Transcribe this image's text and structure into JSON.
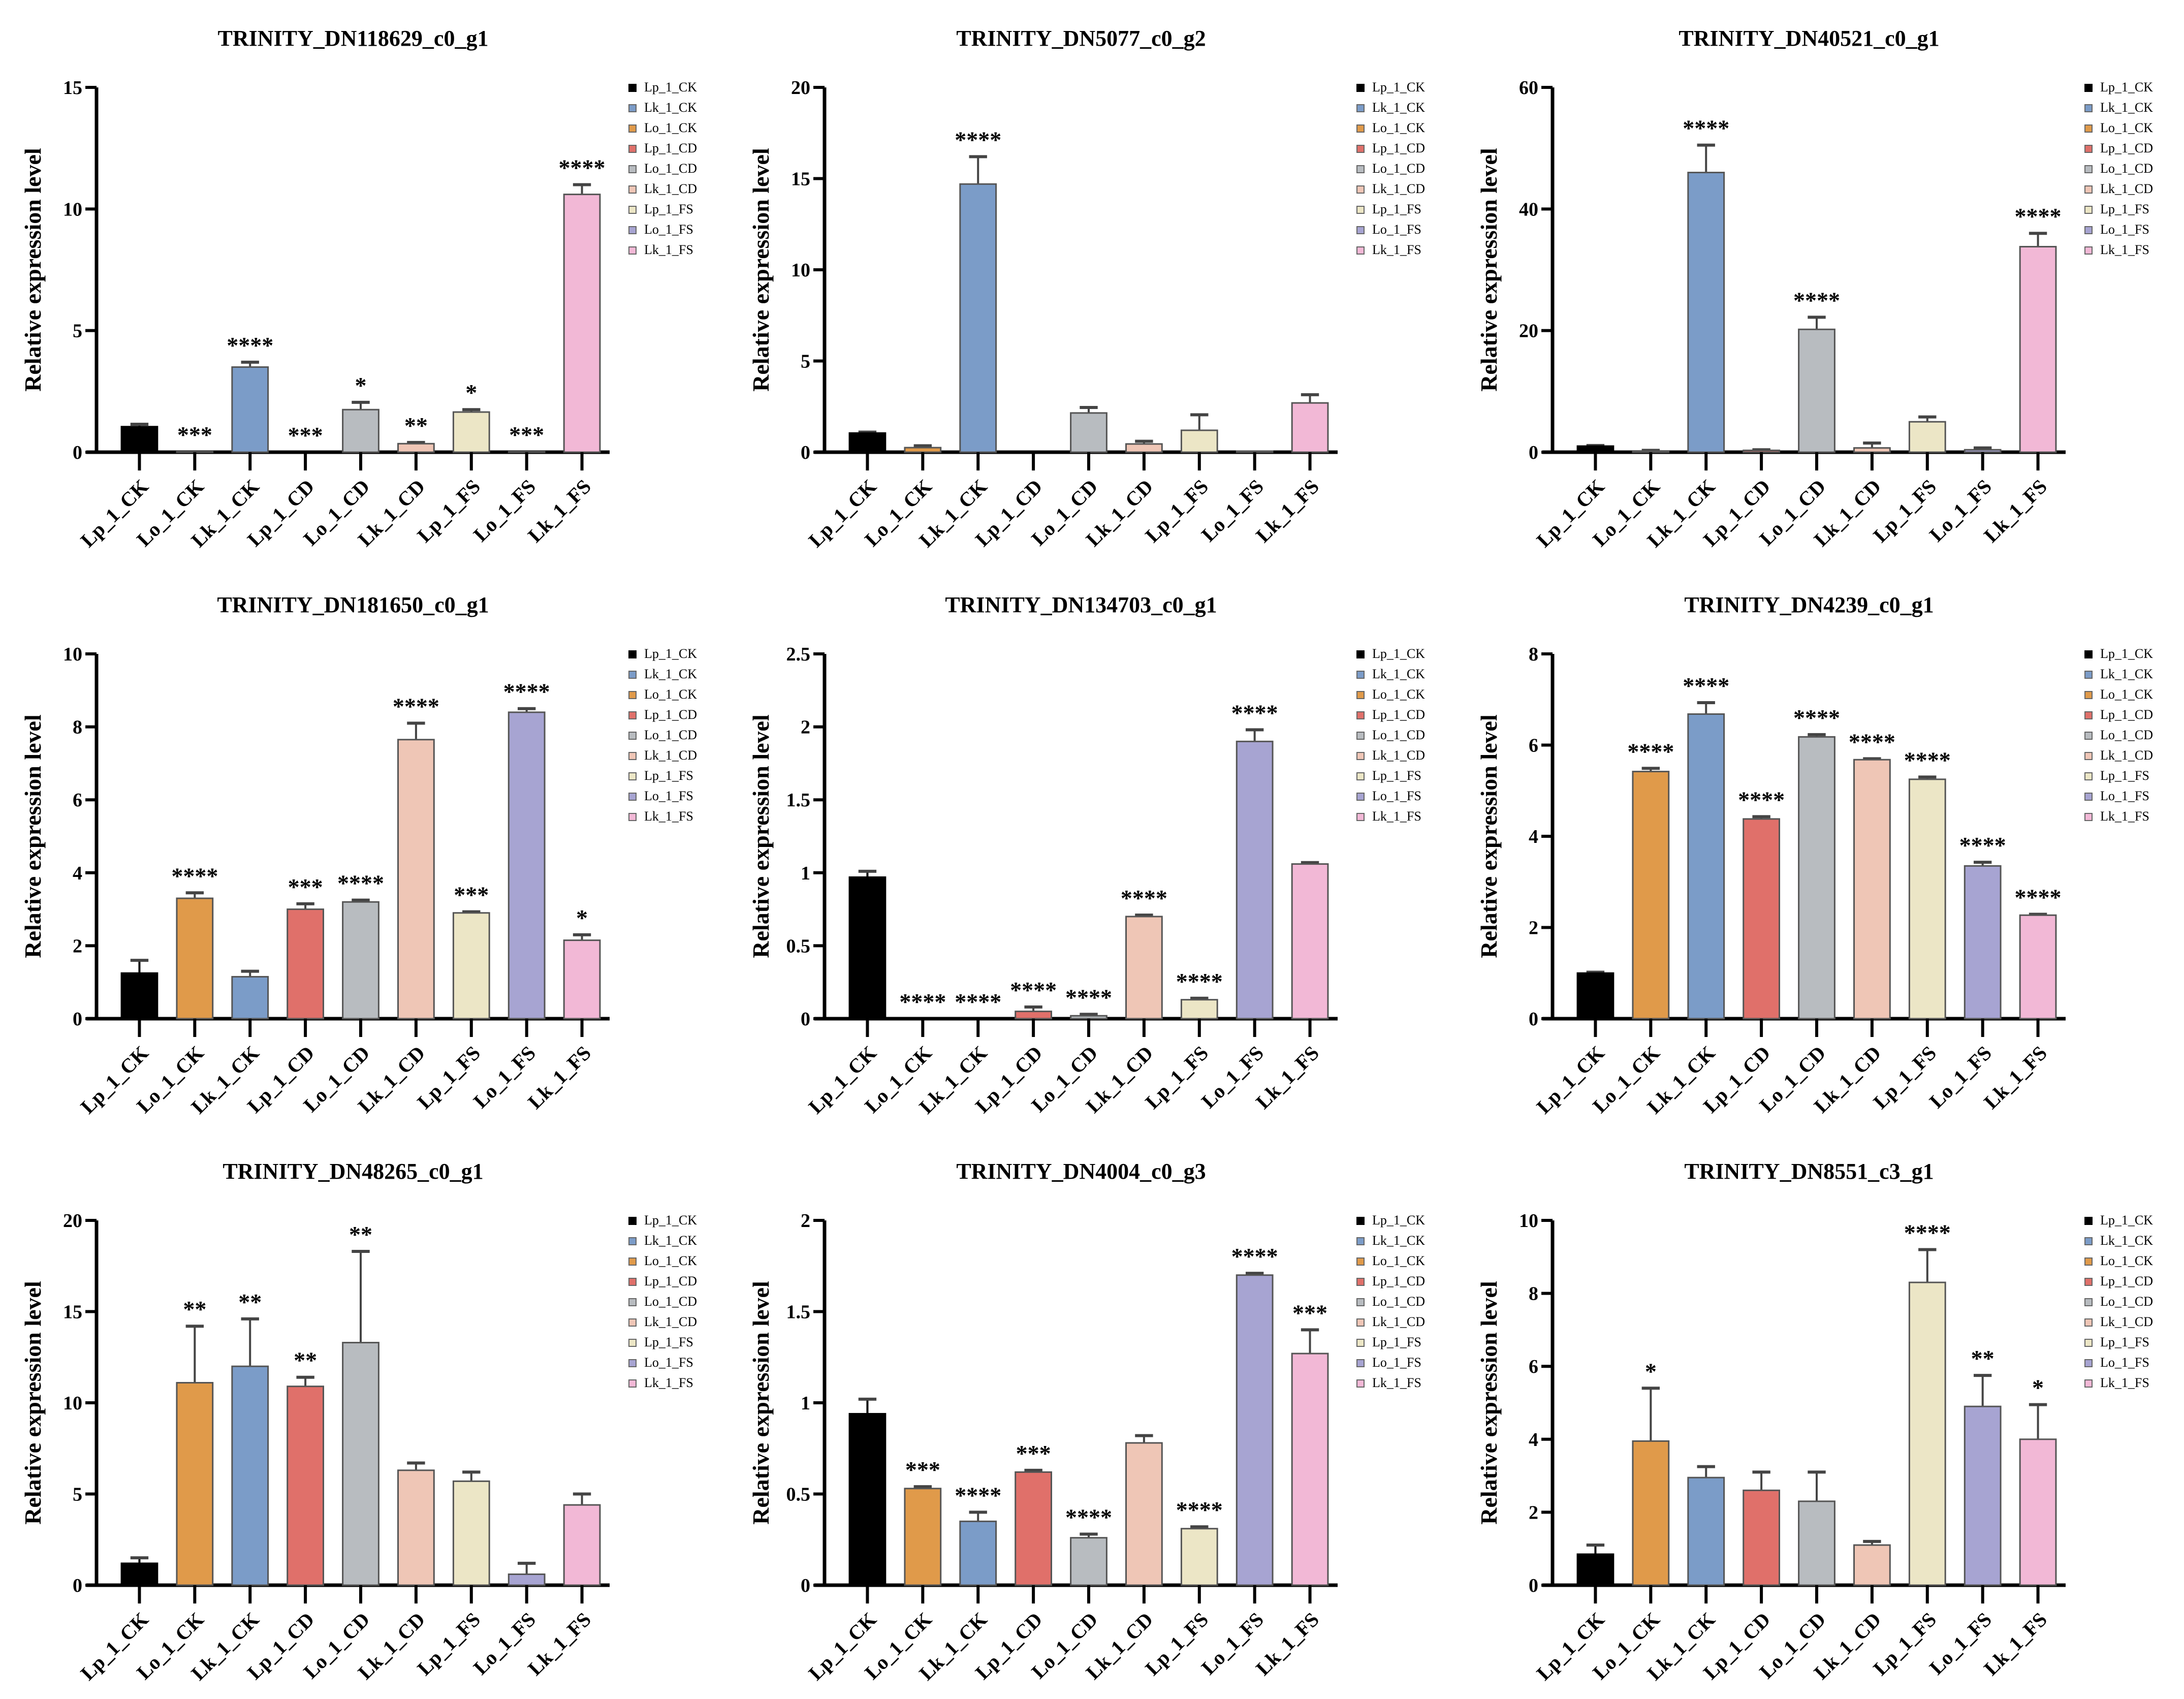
{
  "legend": [
    "Lp_1_CK",
    "Lk_1_CK",
    "Lo_1_CK",
    "Lp_1_CD",
    "Lo_1_CD",
    "Lk_1_CD",
    "Lp_1_FS",
    "Lo_1_FS",
    "Lk_1_FS"
  ],
  "legend_colors": [
    "#000000",
    "#7b9cc8",
    "#e09a4a",
    "#e0706a",
    "#b8bcc0",
    "#efc6b6",
    "#ece6c6",
    "#a7a4d2",
    "#f2b8d6"
  ],
  "chart_data": [
    {
      "type": "bar",
      "title": "TRINITY_DN118629_c0_g1",
      "ylabel": "Relative expression level",
      "ylim": [
        0,
        15
      ],
      "yticks": [
        0,
        5,
        10,
        15
      ],
      "categories": [
        "Lp_1_CK",
        "Lo_1_CK",
        "Lk_1_CK",
        "Lp_1_CD",
        "Lo_1_CD",
        "Lk_1_CD",
        "Lp_1_FS",
        "Lo_1_FS",
        "Lk_1_FS"
      ],
      "values": [
        1.05,
        0.02,
        3.5,
        0,
        1.75,
        0.35,
        1.65,
        0.02,
        10.6
      ],
      "errors": [
        0.1,
        0,
        0.2,
        0,
        0.3,
        0.05,
        0.1,
        0,
        0.4
      ],
      "significance": [
        "",
        "***",
        "****",
        "***",
        "*",
        "**",
        "*",
        "***",
        "****"
      ]
    },
    {
      "type": "bar",
      "title": "TRINITY_DN5077_c0_g2",
      "ylabel": "Relative expression level",
      "ylim": [
        0,
        20
      ],
      "yticks": [
        0,
        5,
        10,
        15,
        20
      ],
      "categories": [
        "Lp_1_CK",
        "Lo_1_CK",
        "Lk_1_CK",
        "Lp_1_CD",
        "Lo_1_CD",
        "Lk_1_CD",
        "Lp_1_FS",
        "Lo_1_FS",
        "Lk_1_FS"
      ],
      "values": [
        1.05,
        0.25,
        14.7,
        0,
        2.15,
        0.45,
        1.2,
        0.05,
        2.7
      ],
      "errors": [
        0.05,
        0.1,
        1.5,
        0,
        0.3,
        0.15,
        0.85,
        0,
        0.45
      ],
      "significance": [
        "",
        "",
        "****",
        "",
        "",
        "",
        "",
        "",
        ""
      ]
    },
    {
      "type": "bar",
      "title": "TRINITY_DN40521_c0_g1",
      "ylabel": "Relative expression level",
      "ylim": [
        0,
        60
      ],
      "yticks": [
        0,
        20,
        40,
        60
      ],
      "categories": [
        "Lp_1_CK",
        "Lo_1_CK",
        "Lk_1_CK",
        "Lp_1_CD",
        "Lo_1_CD",
        "Lk_1_CD",
        "Lp_1_FS",
        "Lo_1_FS",
        "Lk_1_FS"
      ],
      "values": [
        1,
        0.2,
        46,
        0.3,
        20.2,
        0.7,
        5,
        0.4,
        33.8
      ],
      "errors": [
        0.1,
        0.1,
        4.5,
        0.1,
        2,
        0.8,
        0.8,
        0.3,
        2.2
      ],
      "significance": [
        "",
        "",
        "****",
        "",
        "****",
        "",
        "",
        "",
        "****"
      ]
    },
    {
      "type": "bar",
      "title": "TRINITY_DN181650_c0_g1",
      "ylabel": "Relative expression level",
      "ylim": [
        0,
        10
      ],
      "yticks": [
        0,
        2,
        4,
        6,
        8,
        10
      ],
      "categories": [
        "Lp_1_CK",
        "Lo_1_CK",
        "Lk_1_CK",
        "Lp_1_CD",
        "Lo_1_CD",
        "Lk_1_CD",
        "Lp_1_FS",
        "Lo_1_FS",
        "Lk_1_FS"
      ],
      "values": [
        1.25,
        3.3,
        1.15,
        3.0,
        3.2,
        7.65,
        2.9,
        8.4,
        2.15
      ],
      "errors": [
        0.35,
        0.15,
        0.15,
        0.15,
        0.05,
        0.45,
        0.03,
        0.1,
        0.15
      ],
      "significance": [
        "",
        "****",
        "",
        "***",
        "****",
        "****",
        "***",
        "****",
        "*"
      ]
    },
    {
      "type": "bar",
      "title": "TRINITY_DN134703_c0_g1",
      "ylabel": "Relative expression level",
      "ylim": [
        0,
        2.5
      ],
      "yticks": [
        0,
        0.5,
        1.0,
        1.5,
        2.0,
        2.5
      ],
      "categories": [
        "Lp_1_CK",
        "Lo_1_CK",
        "Lk_1_CK",
        "Lp_1_CD",
        "Lo_1_CD",
        "Lk_1_CD",
        "Lp_1_FS",
        "Lo_1_FS",
        "Lk_1_FS"
      ],
      "values": [
        0.97,
        0,
        0,
        0.05,
        0.02,
        0.7,
        0.13,
        1.9,
        1.06
      ],
      "errors": [
        0.04,
        0,
        0,
        0.03,
        0.01,
        0.01,
        0.01,
        0.08,
        0.01
      ],
      "significance": [
        "",
        "****",
        "****",
        "****",
        "****",
        "****",
        "****",
        "****",
        ""
      ]
    },
    {
      "type": "bar",
      "title": "TRINITY_DN4239_c0_g1",
      "ylabel": "Relative expression level",
      "ylim": [
        0,
        8
      ],
      "yticks": [
        0,
        2,
        4,
        6,
        8
      ],
      "categories": [
        "Lp_1_CK",
        "Lo_1_CK",
        "Lk_1_CK",
        "Lp_1_CD",
        "Lo_1_CD",
        "Lk_1_CD",
        "Lp_1_FS",
        "Lo_1_FS",
        "Lk_1_FS"
      ],
      "values": [
        1,
        5.42,
        6.68,
        4.38,
        6.18,
        5.68,
        5.25,
        3.35,
        2.27
      ],
      "errors": [
        0.02,
        0.07,
        0.25,
        0.05,
        0.05,
        0.02,
        0.05,
        0.08,
        0.02
      ],
      "significance": [
        "",
        "****",
        "****",
        "****",
        "****",
        "****",
        "****",
        "****",
        "****"
      ]
    },
    {
      "type": "bar",
      "title": "TRINITY_DN48265_c0_g1",
      "ylabel": "Relative expression level",
      "ylim": [
        0,
        20
      ],
      "yticks": [
        0,
        5,
        10,
        15,
        20
      ],
      "categories": [
        "Lp_1_CK",
        "Lo_1_CK",
        "Lk_1_CK",
        "Lp_1_CD",
        "Lo_1_CD",
        "Lk_1_CD",
        "Lp_1_FS",
        "Lo_1_FS",
        "Lk_1_FS"
      ],
      "values": [
        1.2,
        11.1,
        12,
        10.9,
        13.3,
        6.3,
        5.7,
        0.6,
        4.4
      ],
      "errors": [
        0.3,
        3.1,
        2.6,
        0.5,
        5,
        0.4,
        0.5,
        0.6,
        0.6
      ],
      "significance": [
        "",
        "**",
        "**",
        "**",
        "**",
        "",
        "",
        "",
        ""
      ]
    },
    {
      "type": "bar",
      "title": "TRINITY_DN4004_c0_g3",
      "ylabel": "Relative expression level",
      "ylim": [
        0,
        2.0
      ],
      "yticks": [
        0,
        0.5,
        1.0,
        1.5,
        2.0
      ],
      "categories": [
        "Lp_1_CK",
        "Lo_1_CK",
        "Lk_1_CK",
        "Lp_1_CD",
        "Lo_1_CD",
        "Lk_1_CD",
        "Lp_1_FS",
        "Lo_1_FS",
        "Lk_1_FS"
      ],
      "values": [
        0.94,
        0.53,
        0.35,
        0.62,
        0.26,
        0.78,
        0.31,
        1.7,
        1.27
      ],
      "errors": [
        0.08,
        0.01,
        0.05,
        0.01,
        0.02,
        0.04,
        0.01,
        0.01,
        0.13
      ],
      "significance": [
        "",
        "***",
        "****",
        "***",
        "****",
        "",
        "****",
        "****",
        "***"
      ]
    },
    {
      "type": "bar",
      "title": "TRINITY_DN8551_c3_g1",
      "ylabel": "Relative expression level",
      "ylim": [
        0,
        10
      ],
      "yticks": [
        0,
        2,
        4,
        6,
        8,
        10
      ],
      "categories": [
        "Lp_1_CK",
        "Lo_1_CK",
        "Lk_1_CK",
        "Lp_1_CD",
        "Lo_1_CD",
        "Lk_1_CD",
        "Lp_1_FS",
        "Lo_1_FS",
        "Lk_1_FS"
      ],
      "values": [
        0.85,
        3.95,
        2.95,
        2.6,
        2.3,
        1.1,
        8.3,
        4.9,
        4.0
      ],
      "errors": [
        0.25,
        1.45,
        0.3,
        0.5,
        0.8,
        0.1,
        0.9,
        0.85,
        0.95
      ],
      "significance": [
        "",
        "*",
        "",
        "",
        "",
        "",
        "****",
        "**",
        "*"
      ]
    }
  ]
}
